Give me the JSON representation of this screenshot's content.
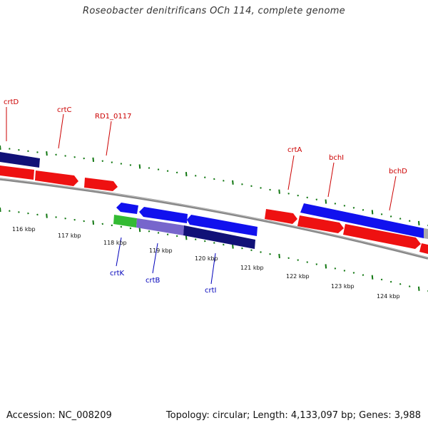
{
  "title": "Roseobacter denitrificans OCh 114, complete genome",
  "footer": {
    "accession": "Accession: NC_008209",
    "stats": "Topology: circular; Length: 4,133,097 bp; Genes: 3,988"
  },
  "colors": {
    "forward_gene": "#ee1111",
    "reverse_gene": "#1111ee",
    "operon_dark": "#111177",
    "green_gene": "#33bb33",
    "lavender_gene": "#7766cc",
    "backbone": "#888888",
    "tick": "#117711",
    "label_forward": "#cc0000",
    "label_reverse": "#0000bb"
  },
  "scale_labels": [
    "116 kbp",
    "117 kbp",
    "118 kbp",
    "119 kbp",
    "120 kbp",
    "121 kbp",
    "122 kbp",
    "123 kbp",
    "124 kbp"
  ],
  "gene_labels_top": [
    "crtD",
    "crtC",
    "RD1_0117",
    "crtA",
    "bchI",
    "bchD"
  ],
  "gene_labels_bottom": [
    "crtK",
    "crtB",
    "crtI"
  ]
}
